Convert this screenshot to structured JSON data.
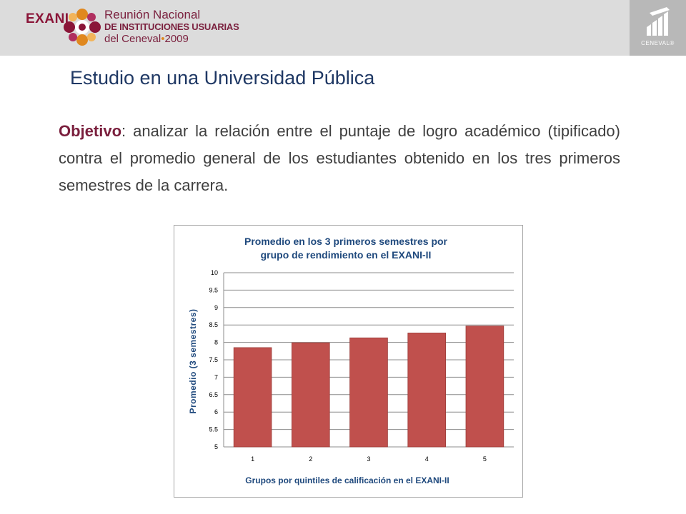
{
  "header": {
    "brand": "EXANI",
    "event_line1": "Reunión Nacional",
    "event_line2": "DE INSTITUCIONES USUARIAS",
    "event_line3_a": "del Ceneval",
    "event_line3_sep": "•",
    "event_line3_b": "2009",
    "ceneval_label": "CENEVAL®",
    "colors": {
      "band": "#dcdcdc",
      "brand": "#8a1538",
      "accent": "#e0881f",
      "ceneval_box": "#b8b8b8"
    }
  },
  "slide": {
    "title": "Estudio en una Universidad Pública",
    "objective_label": "Objetivo",
    "objective_text": ": analizar la relación entre el puntaje de logro académico (tipificado) contra el promedio general de los estudiantes obtenido en los tres primeros semestres de la carrera."
  },
  "chart_data": {
    "type": "bar",
    "title_line1": "Promedio en los 3 primeros semestres por",
    "title_line2": "grupo de rendimiento en el EXANI-II",
    "xlabel": "Grupos por quintiles de calificación en el EXANI-II",
    "ylabel": "Promedio (3 semestres)",
    "categories": [
      "1",
      "2",
      "3",
      "4",
      "5"
    ],
    "values": [
      7.85,
      7.99,
      8.13,
      8.27,
      8.47
    ],
    "ylim": [
      5,
      10
    ],
    "yticks": [
      "5",
      "5.5",
      "6",
      "6.5",
      "7",
      "7.5",
      "8",
      "8.5",
      "9",
      "9.5",
      "10"
    ],
    "grid": true,
    "legend": "none",
    "bar_color": "#c0504d",
    "title_color": "#1f497d"
  }
}
